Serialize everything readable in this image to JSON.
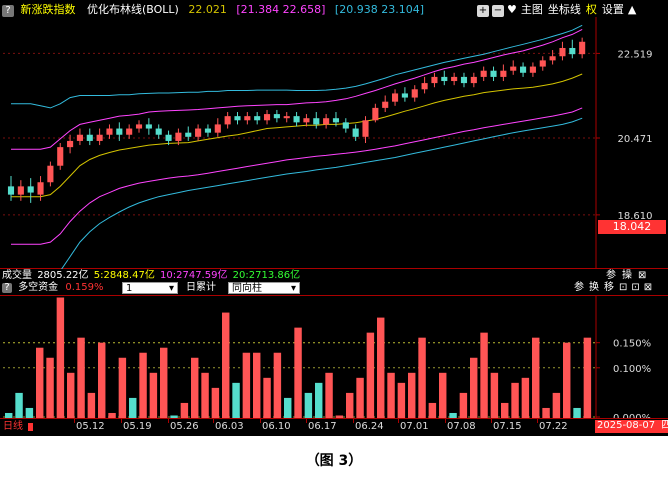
{
  "top_panel": {
    "title": "新涨跌指数",
    "indicator_name": "优化布林线(BOLL)",
    "mid_value": "22.021",
    "upper_bracket": "[21.384  22.658]",
    "lower_bracket": "[20.938  23.104]",
    "toolbar": [
      "主图",
      "坐标线",
      "权",
      "设置"
    ],
    "y_ticks": [
      "22.519",
      "20.471",
      "18.610"
    ],
    "current_price": "18.042"
  },
  "volume_bar": {
    "label": "成交量",
    "total": "2805.22亿",
    "ma5": "5:2848.47亿",
    "ma10": "10:2747.59亿",
    "ma20": "20:2713.86亿",
    "buttons": [
      "参",
      "操"
    ]
  },
  "fund_panel": {
    "title": "多空资金",
    "value": "0.159%",
    "select_value": "1",
    "accumulate_label": "日累计",
    "mode_value": "同向柱",
    "buttons": [
      "参",
      "换",
      "移"
    ],
    "y_ticks": [
      "0.150%",
      "0.100%",
      "0.000%"
    ]
  },
  "status_bar": {
    "period": "日线",
    "x_ticks": [
      "05.12",
      "05.19",
      "05.26",
      "06.03",
      "06.10",
      "06.17",
      "06.24",
      "07.01",
      "07.08",
      "07.15",
      "07.22"
    ],
    "date": "2025-08-07",
    "weekday": "四"
  },
  "colors": {
    "up": "#ff5555",
    "down": "#55ddcc",
    "mid": "#d4c400",
    "upper": "#ff44ff",
    "outer": "#33bbdd",
    "label_red": "#ff3333"
  },
  "caption": "（图 3）",
  "chart_data": [
    {
      "type": "candlestick",
      "title": "新涨跌指数",
      "ylabel": "",
      "yticks": [
        22.519,
        20.471,
        18.61
      ],
      "ylim": [
        17.3,
        23.4
      ],
      "current": 18.042,
      "candles": [
        {
          "o": 19.3,
          "c": 19.1,
          "h": 19.55,
          "l": 18.95
        },
        {
          "o": 19.1,
          "c": 19.3,
          "h": 19.45,
          "l": 18.95
        },
        {
          "o": 19.3,
          "c": 19.15,
          "h": 19.5,
          "l": 18.9
        },
        {
          "o": 19.1,
          "c": 19.4,
          "h": 19.55,
          "l": 18.95
        },
        {
          "o": 19.4,
          "c": 19.8,
          "h": 19.9,
          "l": 19.3
        },
        {
          "o": 19.8,
          "c": 20.25,
          "h": 20.35,
          "l": 19.7
        },
        {
          "o": 20.25,
          "c": 20.4,
          "h": 20.55,
          "l": 20.1
        },
        {
          "o": 20.4,
          "c": 20.55,
          "h": 20.7,
          "l": 20.3
        },
        {
          "o": 20.55,
          "c": 20.4,
          "h": 20.7,
          "l": 20.3
        },
        {
          "o": 20.4,
          "c": 20.55,
          "h": 20.7,
          "l": 20.3
        },
        {
          "o": 20.55,
          "c": 20.7,
          "h": 20.8,
          "l": 20.45
        },
        {
          "o": 20.7,
          "c": 20.55,
          "h": 20.85,
          "l": 20.4
        },
        {
          "o": 20.55,
          "c": 20.7,
          "h": 20.8,
          "l": 20.45
        },
        {
          "o": 20.7,
          "c": 20.8,
          "h": 20.9,
          "l": 20.6
        },
        {
          "o": 20.8,
          "c": 20.7,
          "h": 20.95,
          "l": 20.55
        },
        {
          "o": 20.7,
          "c": 20.55,
          "h": 20.8,
          "l": 20.45
        },
        {
          "o": 20.55,
          "c": 20.4,
          "h": 20.65,
          "l": 20.3
        },
        {
          "o": 20.4,
          "c": 20.6,
          "h": 20.7,
          "l": 20.3
        },
        {
          "o": 20.6,
          "c": 20.5,
          "h": 20.75,
          "l": 20.4
        },
        {
          "o": 20.5,
          "c": 20.7,
          "h": 20.8,
          "l": 20.4
        },
        {
          "o": 20.7,
          "c": 20.6,
          "h": 20.8,
          "l": 20.5
        },
        {
          "o": 20.6,
          "c": 20.8,
          "h": 20.95,
          "l": 20.5
        },
        {
          "o": 20.8,
          "c": 21.0,
          "h": 21.1,
          "l": 20.7
        },
        {
          "o": 21.0,
          "c": 20.9,
          "h": 21.1,
          "l": 20.8
        },
        {
          "o": 20.9,
          "c": 21.0,
          "h": 21.1,
          "l": 20.8
        },
        {
          "o": 21.0,
          "c": 20.9,
          "h": 21.1,
          "l": 20.8
        },
        {
          "o": 20.9,
          "c": 21.05,
          "h": 21.15,
          "l": 20.8
        },
        {
          "o": 21.05,
          "c": 20.95,
          "h": 21.15,
          "l": 20.85
        },
        {
          "o": 20.95,
          "c": 21.0,
          "h": 21.1,
          "l": 20.85
        },
        {
          "o": 21.0,
          "c": 20.85,
          "h": 21.1,
          "l": 20.75
        },
        {
          "o": 20.85,
          "c": 20.95,
          "h": 21.05,
          "l": 20.75
        },
        {
          "o": 20.95,
          "c": 20.8,
          "h": 21.1,
          "l": 20.7
        },
        {
          "o": 20.8,
          "c": 20.95,
          "h": 21.05,
          "l": 20.7
        },
        {
          "o": 20.95,
          "c": 20.85,
          "h": 21.1,
          "l": 20.75
        },
        {
          "o": 20.85,
          "c": 20.7,
          "h": 20.95,
          "l": 20.6
        },
        {
          "o": 20.7,
          "c": 20.5,
          "h": 20.8,
          "l": 20.4
        },
        {
          "o": 20.5,
          "c": 20.9,
          "h": 21.0,
          "l": 20.35
        },
        {
          "o": 20.9,
          "c": 21.2,
          "h": 21.3,
          "l": 20.85
        },
        {
          "o": 21.2,
          "c": 21.35,
          "h": 21.5,
          "l": 21.1
        },
        {
          "o": 21.35,
          "c": 21.55,
          "h": 21.65,
          "l": 21.25
        },
        {
          "o": 21.55,
          "c": 21.45,
          "h": 21.7,
          "l": 21.35
        },
        {
          "o": 21.45,
          "c": 21.65,
          "h": 21.75,
          "l": 21.35
        },
        {
          "o": 21.65,
          "c": 21.8,
          "h": 21.95,
          "l": 21.55
        },
        {
          "o": 21.8,
          "c": 21.95,
          "h": 22.05,
          "l": 21.7
        },
        {
          "o": 21.95,
          "c": 21.85,
          "h": 22.1,
          "l": 21.75
        },
        {
          "o": 21.85,
          "c": 21.95,
          "h": 22.05,
          "l": 21.75
        },
        {
          "o": 21.95,
          "c": 21.8,
          "h": 22.05,
          "l": 21.7
        },
        {
          "o": 21.8,
          "c": 21.95,
          "h": 22.05,
          "l": 21.7
        },
        {
          "o": 21.95,
          "c": 22.1,
          "h": 22.2,
          "l": 21.85
        },
        {
          "o": 22.1,
          "c": 21.95,
          "h": 22.2,
          "l": 21.85
        },
        {
          "o": 21.95,
          "c": 22.1,
          "h": 22.25,
          "l": 21.85
        },
        {
          "o": 22.1,
          "c": 22.2,
          "h": 22.35,
          "l": 22.0
        },
        {
          "o": 22.2,
          "c": 22.05,
          "h": 22.3,
          "l": 21.95
        },
        {
          "o": 22.05,
          "c": 22.2,
          "h": 22.3,
          "l": 21.95
        },
        {
          "o": 22.2,
          "c": 22.35,
          "h": 22.45,
          "l": 22.1
        },
        {
          "o": 22.35,
          "c": 22.45,
          "h": 22.6,
          "l": 22.25
        },
        {
          "o": 22.45,
          "c": 22.65,
          "h": 22.8,
          "l": 22.35
        },
        {
          "o": 22.65,
          "c": 22.5,
          "h": 22.85,
          "l": 22.4
        },
        {
          "o": 22.5,
          "c": 22.8,
          "h": 22.9,
          "l": 22.4
        }
      ],
      "series": [
        {
          "name": "MID",
          "values": [
            19.05,
            19.05,
            19.05,
            19.05,
            19.1,
            19.3,
            19.55,
            19.8,
            19.95,
            20.05,
            20.12,
            20.18,
            20.22,
            20.26,
            20.3,
            20.32,
            20.34,
            20.35,
            20.36,
            20.4,
            20.44,
            20.48,
            20.52,
            20.55,
            20.6,
            20.65,
            20.7,
            20.72,
            20.74,
            20.76,
            20.78,
            20.78,
            20.8,
            20.8,
            20.82,
            20.84,
            20.88,
            20.92,
            20.98,
            21.05,
            21.12,
            21.18,
            21.25,
            21.32,
            21.38,
            21.43,
            21.48,
            21.52,
            21.57,
            21.6,
            21.63,
            21.66,
            21.68,
            21.7,
            21.74,
            21.78,
            21.84,
            21.92,
            22.02
          ]
        },
        {
          "name": "UPPER",
          "values": [
            20.2,
            20.2,
            20.2,
            20.2,
            20.25,
            20.45,
            20.65,
            20.8,
            20.85,
            20.9,
            20.95,
            21.0,
            21.02,
            21.05,
            21.1,
            21.12,
            21.13,
            21.14,
            21.15,
            21.16,
            21.18,
            21.2,
            21.22,
            21.24,
            21.25,
            21.26,
            21.27,
            21.28,
            21.28,
            21.3,
            21.32,
            21.33,
            21.35,
            21.38,
            21.42,
            21.48,
            21.55,
            21.62,
            21.7,
            21.78,
            21.85,
            21.92,
            22.0,
            22.08,
            22.15,
            22.2,
            22.26,
            22.3,
            22.36,
            22.42,
            22.48,
            22.53,
            22.58,
            22.65,
            22.72,
            22.8,
            22.9,
            22.98,
            23.1
          ]
        },
        {
          "name": "LOWER",
          "values": [
            17.9,
            17.9,
            17.9,
            17.9,
            17.95,
            18.15,
            18.45,
            18.7,
            18.9,
            19.05,
            19.15,
            19.25,
            19.32,
            19.38,
            19.42,
            19.46,
            19.5,
            19.53,
            19.55,
            19.58,
            19.62,
            19.66,
            19.7,
            19.74,
            19.78,
            19.82,
            19.86,
            19.9,
            19.94,
            19.97,
            20.0,
            20.03,
            20.05,
            20.08,
            20.1,
            20.13,
            20.16,
            20.2,
            20.24,
            20.28,
            20.33,
            20.38,
            20.43,
            20.48,
            20.53,
            20.58,
            20.63,
            20.67,
            20.72,
            20.76,
            20.8,
            20.84,
            20.88,
            20.92,
            20.96,
            21.0,
            21.05,
            21.1,
            21.2
          ]
        },
        {
          "name": "OUTER",
          "values": [
            21.3,
            21.3,
            21.3,
            21.25,
            21.2,
            21.3,
            21.45,
            21.5,
            21.5,
            21.5,
            21.5,
            21.52,
            21.52,
            21.54,
            21.55,
            21.56,
            21.56,
            21.57,
            21.58,
            21.58,
            21.6,
            21.6,
            21.62,
            21.62,
            21.62,
            21.63,
            21.63,
            21.63,
            21.63,
            21.62,
            21.62,
            21.62,
            21.63,
            21.65,
            21.68,
            21.72,
            21.78,
            21.85,
            21.92,
            22.0,
            22.06,
            22.12,
            22.18,
            22.24,
            22.3,
            22.35,
            22.4,
            22.45,
            22.5,
            22.56,
            22.62,
            22.68,
            22.74,
            22.8,
            22.86,
            22.93,
            23.0,
            23.08,
            23.2
          ]
        },
        {
          "name": "OUTER2",
          "values": [
            17.0,
            17.0,
            17.0,
            17.0,
            17.05,
            17.25,
            17.6,
            17.95,
            18.2,
            18.4,
            18.55,
            18.68,
            18.8,
            18.9,
            18.98,
            19.05,
            19.1,
            19.15,
            19.2,
            19.24,
            19.28,
            19.32,
            19.36,
            19.4,
            19.44,
            19.48,
            19.52,
            19.56,
            19.6,
            19.63,
            19.66,
            19.7,
            19.73,
            19.76,
            19.8,
            19.84,
            19.88,
            19.92,
            19.96,
            20.0,
            20.05,
            20.1,
            20.15,
            20.2,
            20.25,
            20.3,
            20.35,
            20.4,
            20.45,
            20.5,
            20.55,
            20.6,
            20.64,
            20.68,
            20.72,
            20.76,
            20.8,
            20.86,
            20.95
          ]
        }
      ]
    },
    {
      "type": "bar",
      "title": "多空资金",
      "ylabel": "",
      "ylim": [
        0,
        0.245
      ],
      "yticks": [
        0.15,
        0.1,
        0.0
      ],
      "values": [
        0.01,
        0.05,
        0.02,
        0.14,
        0.12,
        0.24,
        0.09,
        0.16,
        0.05,
        0.15,
        0.01,
        0.12,
        0.04,
        0.13,
        0.09,
        0.14,
        0.005,
        0.03,
        0.12,
        0.09,
        0.06,
        0.21,
        0.07,
        0.13,
        0.13,
        0.08,
        0.13,
        0.04,
        0.18,
        0.05,
        0.07,
        0.09,
        0.005,
        0.05,
        0.08,
        0.17,
        0.2,
        0.09,
        0.07,
        0.09,
        0.16,
        0.03,
        0.09,
        0.01,
        0.05,
        0.12,
        0.17,
        0.09,
        0.03,
        0.07,
        0.08,
        0.16,
        0.02,
        0.05,
        0.15,
        0.02,
        0.16
      ],
      "colors": [
        "d",
        "d",
        "d",
        "u",
        "u",
        "u",
        "u",
        "u",
        "u",
        "u",
        "u",
        "u",
        "d",
        "u",
        "u",
        "u",
        "d",
        "u",
        "u",
        "u",
        "u",
        "u",
        "d",
        "u",
        "u",
        "u",
        "u",
        "d",
        "u",
        "d",
        "d",
        "u",
        "u",
        "u",
        "u",
        "u",
        "u",
        "u",
        "u",
        "u",
        "u",
        "u",
        "u",
        "d",
        "u",
        "u",
        "u",
        "u",
        "u",
        "u",
        "u",
        "u",
        "u",
        "u",
        "u",
        "d",
        "u"
      ]
    }
  ]
}
